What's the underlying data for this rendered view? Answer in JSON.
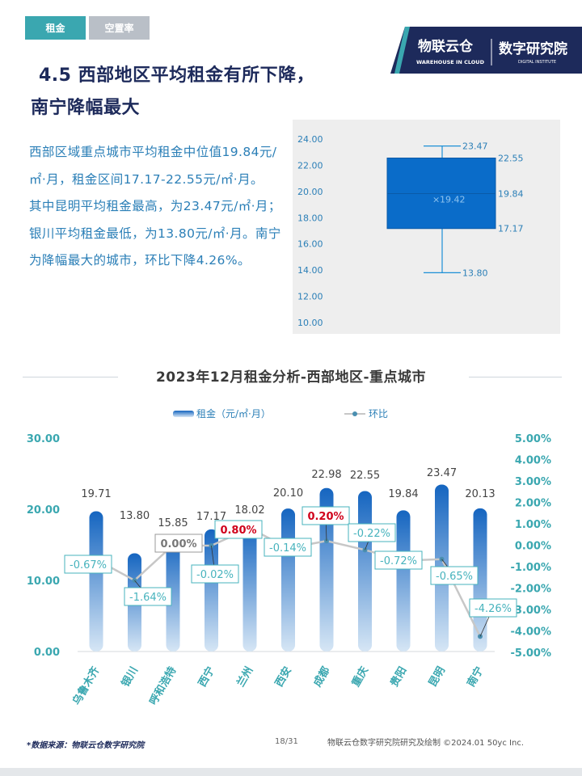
{
  "tabs": [
    {
      "label": "租金",
      "active": true
    },
    {
      "label": "空置率",
      "active": false
    }
  ],
  "logo": {
    "brand_cn": "物联云仓",
    "brand_en": "WAREHOUSE IN CLOUD",
    "institute_cn": "数字研究院",
    "institute_en": "DIGITAL INSTITUTE"
  },
  "title": {
    "line1": "4.5 西部地区平均租金有所下降，",
    "line2": "南宁降幅最大"
  },
  "body": {
    "p1": "西部区域重点城市平均租金中位值19.84元/㎡·月，租金区间17.17-22.55元/㎡·月。",
    "p2": "其中昆明平均租金最高，为23.47元/㎡·月；银川平均租金最低，为13.80元/㎡·月。南宁为降幅最大的城市，环比下降4.26%。"
  },
  "chart_data": [
    {
      "type": "box",
      "y_ticks": [
        "24.00",
        "22.00",
        "20.00",
        "18.00",
        "16.00",
        "14.00",
        "12.00",
        "10.00"
      ],
      "ylim": [
        10,
        24
      ],
      "max": 23.47,
      "q3": 22.55,
      "median": 19.84,
      "mean": 19.42,
      "q1": 17.17,
      "min": 13.8,
      "labels": {
        "max": "23.47",
        "q3": "22.55",
        "median": "19.84",
        "mean": "19.42",
        "q1": "17.17",
        "min": "13.80"
      },
      "colors": {
        "box": "#0a6cc9",
        "whisker": "#1c8fd6",
        "background": "#eeeeee"
      }
    },
    {
      "type": "bar",
      "title": "2023年12月租金分析-西部地区-重点城市",
      "categories": [
        "乌鲁木齐",
        "银川",
        "呼和浩特",
        "西宁",
        "兰州",
        "西安",
        "成都",
        "重庆",
        "贵阳",
        "昆明",
        "南宁"
      ],
      "series": [
        {
          "name": "租金（元/㎡·月）",
          "type": "bar",
          "axis": "left",
          "values": [
            19.71,
            13.8,
            15.85,
            17.17,
            18.02,
            20.1,
            22.98,
            22.55,
            19.84,
            23.47,
            20.13
          ],
          "labels": [
            "19.71",
            "13.80",
            "15.85",
            "17.17",
            "18.02",
            "20.10",
            "22.98",
            "22.55",
            "19.84",
            "23.47",
            "20.13"
          ]
        },
        {
          "name": "环比",
          "type": "line",
          "axis": "right",
          "values": [
            -0.67,
            -1.64,
            0.0,
            -0.02,
            0.8,
            -0.14,
            0.2,
            -0.22,
            -0.72,
            -0.65,
            -4.26
          ],
          "labels": [
            "-0.67%",
            "-1.64%",
            "0.00%",
            "-0.02%",
            "0.80%",
            "-0.14%",
            "0.20%",
            "-0.22%",
            "-0.72%",
            "-0.65%",
            "-4.26%"
          ]
        }
      ],
      "left_axis": {
        "ticks": [
          "30.00",
          "20.00",
          "10.00",
          "0.00"
        ],
        "ylim": [
          0,
          30
        ]
      },
      "right_axis": {
        "ticks": [
          "5.00%",
          "4.00%",
          "3.00%",
          "2.00%",
          "1.00%",
          "0.00%",
          "-1.00%",
          "-2.00%",
          "-3.00%",
          "-4.00%",
          "-5.00%"
        ],
        "ylim": [
          -5,
          5
        ]
      },
      "legend_position": "top-center",
      "colors": {
        "bar_top": "#1565c0",
        "bar_bottom": "#d6e6f5",
        "line": "#c7c7c7",
        "marker": "#4a8fb0",
        "axis_text": "#3aa7b0",
        "label_box": "#47b3bd",
        "positive_label": "#d0021b",
        "neutral_label": "#777777"
      }
    }
  ],
  "footer": {
    "source": "*数据来源：物联云仓数字研究院",
    "page": "18/31",
    "credit": "物联云仓数字研究院研究及绘制  ©2024.01 50yc Inc."
  }
}
